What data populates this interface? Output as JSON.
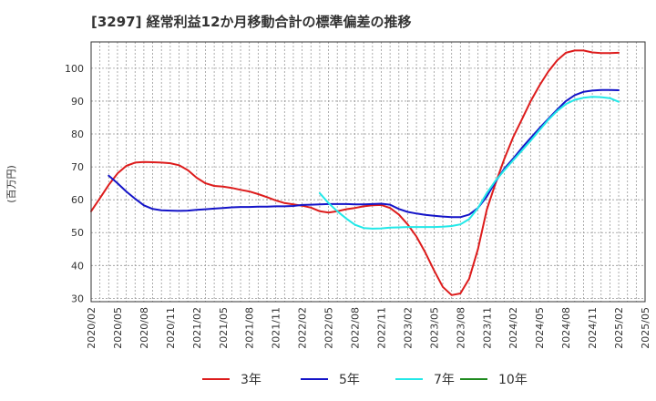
{
  "chart_data": {
    "type": "line",
    "title": "[3297]  経常利益12か月移動合計の標準偏差の推移",
    "ylabel": "(百万円)",
    "xlabel": "",
    "ylim": [
      29,
      108
    ],
    "yticks": [
      30,
      40,
      50,
      60,
      70,
      80,
      90,
      100
    ],
    "xlim": [
      "2020-02",
      "2025-05"
    ],
    "xticks": [
      "2020/02",
      "2020/05",
      "2020/08",
      "2020/11",
      "2021/02",
      "2021/05",
      "2021/08",
      "2021/11",
      "2022/02",
      "2022/05",
      "2022/08",
      "2022/11",
      "2023/02",
      "2023/05",
      "2023/08",
      "2023/11",
      "2024/02",
      "2024/05",
      "2024/08",
      "2024/11",
      "2025/02",
      "2025/05"
    ],
    "grid": true,
    "legend_position": "bottom",
    "series": [
      {
        "name": "3年",
        "color": "#dd1c1c",
        "x": [
          "2020-02",
          "2020-03",
          "2020-04",
          "2020-05",
          "2020-06",
          "2020-07",
          "2020-08",
          "2020-09",
          "2020-10",
          "2020-11",
          "2020-12",
          "2021-01",
          "2021-02",
          "2021-03",
          "2021-04",
          "2021-05",
          "2021-06",
          "2021-07",
          "2021-08",
          "2021-09",
          "2021-10",
          "2021-11",
          "2021-12",
          "2022-01",
          "2022-02",
          "2022-03",
          "2022-04",
          "2022-05",
          "2022-06",
          "2022-07",
          "2022-08",
          "2022-09",
          "2022-10",
          "2022-11",
          "2022-12",
          "2023-01",
          "2023-02",
          "2023-03",
          "2023-04",
          "2023-05",
          "2023-06",
          "2023-07",
          "2023-08",
          "2023-09",
          "2023-10",
          "2023-11",
          "2023-12",
          "2024-01",
          "2024-02",
          "2024-03",
          "2024-04",
          "2024-05",
          "2024-06",
          "2024-07",
          "2024-08",
          "2024-09",
          "2024-10",
          "2024-11",
          "2024-12",
          "2025-01",
          "2025-02"
        ],
        "values": [
          56.5,
          60.5,
          64.5,
          68,
          70.3,
          71.3,
          71.5,
          71.4,
          71.3,
          71.1,
          70.5,
          69,
          66.7,
          65,
          64.2,
          64,
          63.6,
          63,
          62.5,
          61.7,
          60.8,
          59.8,
          59,
          58.6,
          58.2,
          57.6,
          56.5,
          56.1,
          56.5,
          57.1,
          57.5,
          58,
          58.3,
          58.4,
          57.5,
          55.5,
          52.5,
          48.8,
          44,
          38.5,
          33.5,
          31,
          31.5,
          36,
          45,
          57,
          65,
          72.5,
          79,
          84.5,
          90,
          94.8,
          99,
          102.4,
          104.7,
          105.4,
          105.4,
          104.8,
          104.6,
          104.6,
          104.7
        ]
      },
      {
        "name": "5年",
        "color": "#1414c8",
        "x": [
          "2020-04",
          "2020-05",
          "2020-06",
          "2020-07",
          "2020-08",
          "2020-09",
          "2020-10",
          "2020-11",
          "2020-12",
          "2021-01",
          "2021-02",
          "2021-03",
          "2021-04",
          "2021-05",
          "2021-06",
          "2021-07",
          "2021-08",
          "2021-09",
          "2021-10",
          "2021-11",
          "2021-12",
          "2022-01",
          "2022-02",
          "2022-03",
          "2022-04",
          "2022-05",
          "2022-06",
          "2022-07",
          "2022-08",
          "2022-09",
          "2022-10",
          "2022-11",
          "2022-12",
          "2023-01",
          "2023-02",
          "2023-03",
          "2023-04",
          "2023-05",
          "2023-06",
          "2023-07",
          "2023-08",
          "2023-09",
          "2023-10",
          "2023-11",
          "2023-12",
          "2024-01",
          "2024-02",
          "2024-03",
          "2024-04",
          "2024-05",
          "2024-06",
          "2024-07",
          "2024-08",
          "2024-09",
          "2024-10",
          "2024-11",
          "2024-12",
          "2025-01",
          "2025-02"
        ],
        "values": [
          67.3,
          65,
          62.5,
          60.3,
          58.3,
          57.2,
          56.8,
          56.7,
          56.6,
          56.7,
          56.9,
          57.1,
          57.3,
          57.5,
          57.7,
          57.8,
          57.8,
          57.9,
          57.9,
          58,
          58,
          58.1,
          58.4,
          58.5,
          58.6,
          58.7,
          58.7,
          58.7,
          58.6,
          58.6,
          58.7,
          58.8,
          58.5,
          57.2,
          56.3,
          55.8,
          55.4,
          55.1,
          54.9,
          54.7,
          54.7,
          55.5,
          57.5,
          61,
          65.5,
          69.5,
          72.5,
          75.8,
          78.8,
          81.8,
          84.6,
          87.4,
          90,
          91.8,
          92.8,
          93.2,
          93.4,
          93.4,
          93.3
        ]
      },
      {
        "name": "7年",
        "color": "#22e8e8",
        "x": [
          "2022-04",
          "2022-05",
          "2022-06",
          "2022-07",
          "2022-08",
          "2022-09",
          "2022-10",
          "2022-11",
          "2022-12",
          "2023-01",
          "2023-02",
          "2023-03",
          "2023-04",
          "2023-05",
          "2023-06",
          "2023-07",
          "2023-08",
          "2023-09",
          "2023-10",
          "2023-11",
          "2023-12",
          "2024-01",
          "2024-02",
          "2024-03",
          "2024-04",
          "2024-05",
          "2024-06",
          "2024-07",
          "2024-08",
          "2024-09",
          "2024-10",
          "2024-11",
          "2024-12",
          "2025-01",
          "2025-02"
        ],
        "values": [
          62,
          59,
          56.5,
          54.3,
          52.4,
          51.4,
          51.2,
          51.3,
          51.5,
          51.6,
          51.7,
          51.7,
          51.7,
          51.7,
          51.8,
          52,
          52.5,
          54.1,
          57.5,
          62,
          65.8,
          69,
          72,
          75,
          78,
          81.2,
          84.3,
          87,
          89.1,
          90.4,
          91,
          91.3,
          91.2,
          90.9,
          89.8
        ]
      },
      {
        "name": "10年",
        "color": "#1f8a1f",
        "x": [],
        "values": []
      }
    ]
  }
}
